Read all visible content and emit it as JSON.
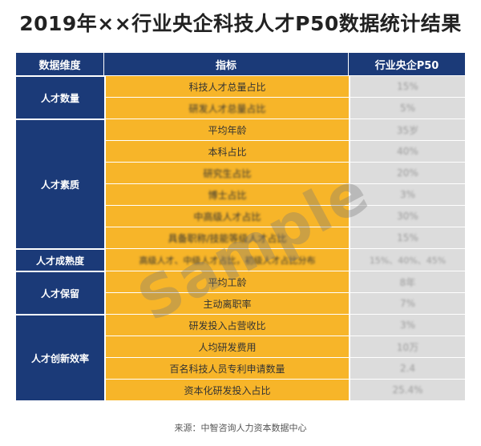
{
  "title": "2019年××行业央企科技人才P50数据统计结果",
  "header": {
    "col1": "数据维度",
    "col2": "指标",
    "col3": "行业央企P50"
  },
  "groups": [
    {
      "dimension": "人才数量",
      "rows": [
        {
          "indicator": "科技人才总量占比",
          "value": "15%"
        },
        {
          "indicator": "研发人才总量占比",
          "value": "5%"
        }
      ]
    },
    {
      "dimension": "人才素质",
      "rows": [
        {
          "indicator": "平均年龄",
          "value": "35岁"
        },
        {
          "indicator": "本科占比",
          "value": "40%"
        },
        {
          "indicator": "研究生占比",
          "value": "20%"
        },
        {
          "indicator": "博士占比",
          "value": "3%"
        },
        {
          "indicator": "中高级人才占比",
          "value": "30%"
        },
        {
          "indicator": "具备职称/技能等级人才占比",
          "value": "15%"
        }
      ]
    },
    {
      "dimension": "人才成熟度",
      "rows": [
        {
          "indicator": "高级人才、中级人才占比，初级人才占比分布",
          "value": "15%、40%、45%"
        }
      ]
    },
    {
      "dimension": "人才保留",
      "rows": [
        {
          "indicator": "平均工龄",
          "value": "8年"
        },
        {
          "indicator": "主动离职率",
          "value": "7%"
        }
      ]
    },
    {
      "dimension": "人才创新效率",
      "rows": [
        {
          "indicator": "研发投入占营收比",
          "value": "3%"
        },
        {
          "indicator": "人均研发费用",
          "value": "10万"
        },
        {
          "indicator": "百名科技人员专利申请数量",
          "value": "2.4"
        },
        {
          "indicator": "资本化研发投入占比",
          "value": "25.4%"
        }
      ]
    }
  ],
  "watermark": "Sample",
  "source": "来源：中智咨询人力资本数据中心"
}
